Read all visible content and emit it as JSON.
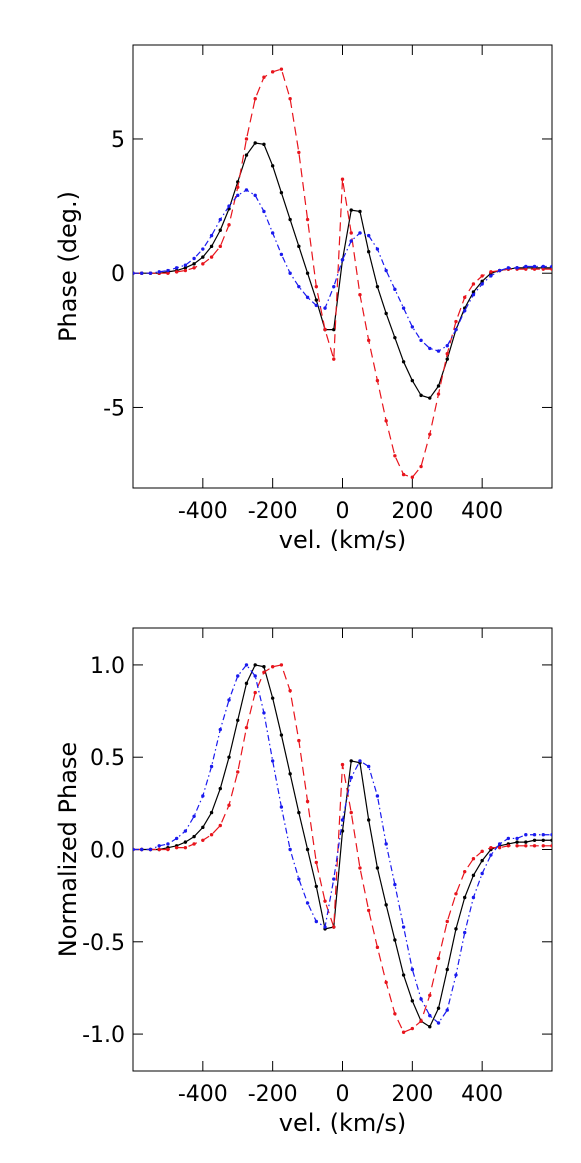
{
  "chart_data": [
    {
      "type": "line",
      "xlabel": "vel. (km/s)",
      "ylabel": "Phase (deg.)",
      "xlim": [
        -600,
        600
      ],
      "ylim": [
        -8,
        8.5
      ],
      "xticks": [
        -400,
        -200,
        0,
        200,
        400
      ],
      "xtick_labels": [
        "-400",
        "-200",
        "0",
        "200",
        "400"
      ],
      "yticks": [
        -5,
        0,
        5
      ],
      "ytick_labels": [
        "-5",
        "0",
        "5"
      ],
      "x": [
        -600,
        -575,
        -550,
        -525,
        -500,
        -475,
        -450,
        -425,
        -400,
        -375,
        -350,
        -325,
        -300,
        -275,
        -250,
        -225,
        -200,
        -175,
        -150,
        -125,
        -100,
        -75,
        -50,
        -25,
        0,
        25,
        50,
        75,
        100,
        125,
        150,
        175,
        200,
        225,
        250,
        275,
        300,
        325,
        350,
        375,
        400,
        425,
        450,
        475,
        500,
        525,
        550,
        575,
        600
      ],
      "series": [
        {
          "color": "#000000",
          "linestyle": "solid",
          "values": [
            0.0,
            0.0,
            0.0,
            0.0,
            0.05,
            0.1,
            0.2,
            0.35,
            0.6,
            1.0,
            1.6,
            2.4,
            3.4,
            4.4,
            4.85,
            4.8,
            4.0,
            3.0,
            2.0,
            1.0,
            0.0,
            -1.0,
            -2.1,
            -2.1,
            0.5,
            2.35,
            2.3,
            0.8,
            -0.5,
            -1.5,
            -2.4,
            -3.3,
            -4.0,
            -4.55,
            -4.65,
            -4.2,
            -3.2,
            -2.1,
            -1.3,
            -0.7,
            -0.3,
            0.0,
            0.1,
            0.15,
            0.2,
            0.2,
            0.2,
            0.2,
            0.2
          ]
        },
        {
          "color": "#e8141c",
          "linestyle": "dashed",
          "values": [
            0.0,
            0.0,
            0.0,
            0.0,
            0.0,
            0.05,
            0.1,
            0.2,
            0.35,
            0.6,
            1.0,
            1.8,
            3.2,
            5.0,
            6.5,
            7.3,
            7.5,
            7.6,
            6.5,
            4.5,
            2.0,
            -0.5,
            -2.1,
            -3.2,
            3.5,
            1.5,
            -0.8,
            -2.5,
            -4.0,
            -5.5,
            -6.8,
            -7.5,
            -7.6,
            -7.2,
            -6.0,
            -4.5,
            -3.0,
            -1.8,
            -0.9,
            -0.4,
            -0.1,
            0.05,
            0.1,
            0.15,
            0.15,
            0.15,
            0.15,
            0.15,
            0.15
          ]
        },
        {
          "color": "#1a1aee",
          "linestyle": "dashdot",
          "values": [
            0.0,
            0.0,
            0.0,
            0.05,
            0.1,
            0.2,
            0.3,
            0.55,
            0.9,
            1.4,
            2.0,
            2.5,
            2.9,
            3.1,
            2.9,
            2.3,
            1.5,
            0.7,
            0.0,
            -0.5,
            -0.9,
            -1.2,
            -1.3,
            -0.5,
            0.5,
            1.2,
            1.5,
            1.4,
            0.9,
            0.1,
            -0.6,
            -1.3,
            -2.0,
            -2.5,
            -2.8,
            -2.9,
            -2.7,
            -2.1,
            -1.4,
            -0.8,
            -0.4,
            -0.1,
            0.1,
            0.2,
            0.2,
            0.25,
            0.25,
            0.25,
            0.25
          ]
        }
      ]
    },
    {
      "type": "line",
      "xlabel": "vel. (km/s)",
      "ylabel": "Normalized Phase",
      "xlim": [
        -600,
        600
      ],
      "ylim": [
        -1.2,
        1.2
      ],
      "xticks": [
        -400,
        -200,
        0,
        200,
        400
      ],
      "xtick_labels": [
        "-400",
        "-200",
        "0",
        "200",
        "400"
      ],
      "yticks": [
        -1.0,
        -0.5,
        0.0,
        0.5,
        1.0
      ],
      "ytick_labels": [
        "-1.0",
        "-0.5",
        "0.0",
        "0.5",
        "1.0"
      ],
      "x": [
        -600,
        -575,
        -550,
        -525,
        -500,
        -475,
        -450,
        -425,
        -400,
        -375,
        -350,
        -325,
        -300,
        -275,
        -250,
        -225,
        -200,
        -175,
        -150,
        -125,
        -100,
        -75,
        -50,
        -25,
        0,
        25,
        50,
        75,
        100,
        125,
        150,
        175,
        200,
        225,
        250,
        275,
        300,
        325,
        350,
        375,
        400,
        425,
        450,
        475,
        500,
        525,
        550,
        575,
        600
      ],
      "series": [
        {
          "color": "#000000",
          "linestyle": "solid",
          "values": [
            0.0,
            0.0,
            0.0,
            0.0,
            0.01,
            0.02,
            0.04,
            0.07,
            0.12,
            0.2,
            0.33,
            0.5,
            0.7,
            0.9,
            1.0,
            0.99,
            0.82,
            0.62,
            0.41,
            0.2,
            0.0,
            -0.2,
            -0.43,
            -0.42,
            0.1,
            0.48,
            0.47,
            0.16,
            -0.1,
            -0.3,
            -0.49,
            -0.68,
            -0.82,
            -0.93,
            -0.96,
            -0.86,
            -0.65,
            -0.43,
            -0.26,
            -0.14,
            -0.06,
            0.0,
            0.02,
            0.03,
            0.04,
            0.04,
            0.05,
            0.05,
            0.05
          ]
        },
        {
          "color": "#e8141c",
          "linestyle": "dashed",
          "values": [
            0.0,
            0.0,
            0.0,
            0.0,
            0.0,
            0.01,
            0.01,
            0.03,
            0.05,
            0.08,
            0.13,
            0.24,
            0.42,
            0.66,
            0.85,
            0.96,
            0.99,
            1.0,
            0.86,
            0.59,
            0.26,
            -0.07,
            -0.28,
            -0.42,
            0.46,
            0.2,
            -0.1,
            -0.33,
            -0.53,
            -0.72,
            -0.89,
            -0.99,
            -0.97,
            -0.93,
            -0.79,
            -0.59,
            -0.39,
            -0.24,
            -0.12,
            -0.05,
            -0.01,
            0.01,
            0.01,
            0.02,
            0.02,
            0.02,
            0.02,
            0.02,
            0.02
          ]
        },
        {
          "color": "#1a1aee",
          "linestyle": "dashdot",
          "values": [
            0.0,
            0.0,
            0.0,
            0.02,
            0.03,
            0.06,
            0.1,
            0.18,
            0.29,
            0.45,
            0.65,
            0.81,
            0.94,
            1.0,
            0.94,
            0.74,
            0.48,
            0.23,
            0.0,
            -0.16,
            -0.29,
            -0.39,
            -0.42,
            -0.16,
            0.16,
            0.39,
            0.48,
            0.45,
            0.29,
            0.03,
            -0.19,
            -0.42,
            -0.65,
            -0.81,
            -0.9,
            -0.94,
            -0.87,
            -0.68,
            -0.45,
            -0.26,
            -0.13,
            -0.03,
            0.03,
            0.06,
            0.06,
            0.08,
            0.08,
            0.08,
            0.08
          ]
        }
      ]
    }
  ]
}
